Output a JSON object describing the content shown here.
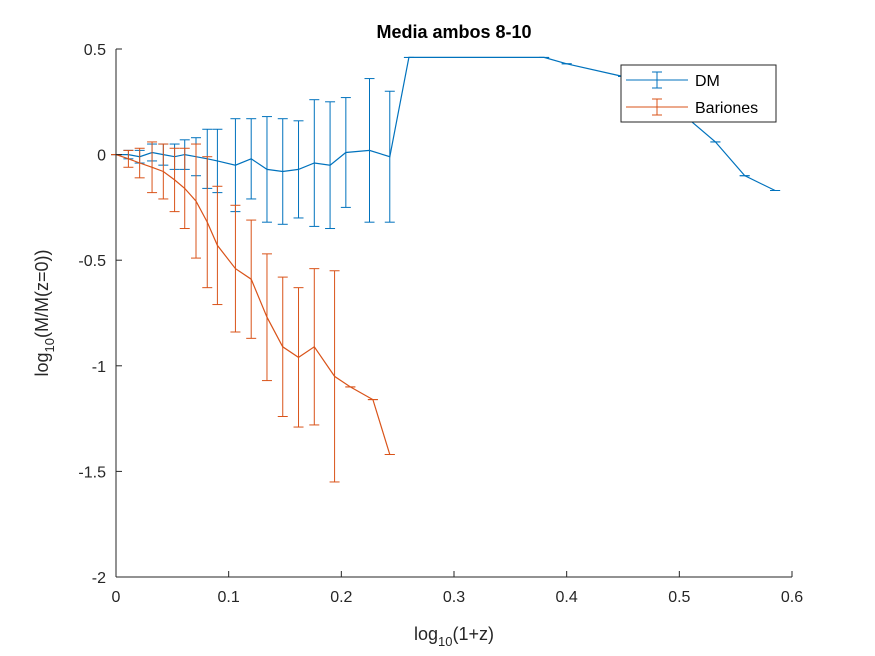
{
  "chart_data": {
    "type": "line",
    "title": "Media ambos 8-10",
    "xlabel": {
      "base": "log",
      "sub": "10",
      "rest": "(1+z)"
    },
    "ylabel": {
      "base": "log",
      "sub": "10",
      "rest": "(M/M(z=0))"
    },
    "xlim": [
      0,
      0.6
    ],
    "ylim": [
      -2,
      0.5
    ],
    "xticks": [
      0,
      0.1,
      0.2,
      0.3,
      0.4,
      0.5,
      0.6
    ],
    "xtick_labels": [
      "0",
      "0.1",
      "0.2",
      "0.3",
      "0.4",
      "0.5",
      "0.6"
    ],
    "yticks": [
      -2,
      -1.5,
      -1,
      -0.5,
      0,
      0.5
    ],
    "ytick_labels": [
      "-2",
      "-1.5",
      "-1",
      "-0.5",
      "0",
      "0.5"
    ],
    "grid": false,
    "legend_position": "top-right",
    "series": [
      {
        "name": "DM",
        "color": "#0072BD",
        "points": [
          {
            "x": 0.0,
            "y": 0.0,
            "err": 0.0
          },
          {
            "x": 0.011,
            "y": 0.0,
            "err": 0.02
          },
          {
            "x": 0.021,
            "y": -0.01,
            "err": 0.03
          },
          {
            "x": 0.032,
            "y": 0.01,
            "err": 0.04
          },
          {
            "x": 0.042,
            "y": 0.0,
            "err": 0.05
          },
          {
            "x": 0.052,
            "y": -0.01,
            "err": 0.06
          },
          {
            "x": 0.061,
            "y": 0.0,
            "err": 0.07
          },
          {
            "x": 0.071,
            "y": -0.01,
            "err": 0.09
          },
          {
            "x": 0.081,
            "y": -0.02,
            "err": 0.14
          },
          {
            "x": 0.09,
            "y": -0.03,
            "err": 0.15
          },
          {
            "x": 0.106,
            "y": -0.05,
            "err": 0.22
          },
          {
            "x": 0.12,
            "y": -0.02,
            "err": 0.19
          },
          {
            "x": 0.134,
            "y": -0.07,
            "err": 0.25
          },
          {
            "x": 0.148,
            "y": -0.08,
            "err": 0.25
          },
          {
            "x": 0.162,
            "y": -0.07,
            "err": 0.23
          },
          {
            "x": 0.176,
            "y": -0.04,
            "err": 0.3
          },
          {
            "x": 0.19,
            "y": -0.05,
            "err": 0.3
          },
          {
            "x": 0.204,
            "y": 0.01,
            "err": 0.26
          },
          {
            "x": 0.225,
            "y": 0.02,
            "err": 0.34
          },
          {
            "x": 0.243,
            "y": -0.01,
            "err": 0.31
          },
          {
            "x": 0.26,
            "y": 0.46,
            "err": 0.0
          },
          {
            "x": 0.38,
            "y": 0.46,
            "err": 0.0
          },
          {
            "x": 0.4,
            "y": 0.43,
            "err": 0.0
          },
          {
            "x": 0.45,
            "y": 0.37,
            "err": 0.0
          },
          {
            "x": 0.49,
            "y": 0.26,
            "err": 0.0
          },
          {
            "x": 0.51,
            "y": 0.16,
            "err": 0.0
          },
          {
            "x": 0.532,
            "y": 0.06,
            "err": 0.0
          },
          {
            "x": 0.558,
            "y": -0.1,
            "err": 0.0
          },
          {
            "x": 0.585,
            "y": -0.17,
            "err": 0.0
          }
        ]
      },
      {
        "name": "Bariones",
        "color": "#D95319",
        "points": [
          {
            "x": 0.0,
            "y": 0.0,
            "err": 0.0
          },
          {
            "x": 0.011,
            "y": -0.02,
            "err": 0.04
          },
          {
            "x": 0.021,
            "y": -0.04,
            "err": 0.07
          },
          {
            "x": 0.032,
            "y": -0.06,
            "err": 0.12
          },
          {
            "x": 0.042,
            "y": -0.08,
            "err": 0.13
          },
          {
            "x": 0.052,
            "y": -0.12,
            "err": 0.15
          },
          {
            "x": 0.061,
            "y": -0.16,
            "err": 0.19
          },
          {
            "x": 0.071,
            "y": -0.22,
            "err": 0.27
          },
          {
            "x": 0.081,
            "y": -0.32,
            "err": 0.31
          },
          {
            "x": 0.09,
            "y": -0.43,
            "err": 0.28
          },
          {
            "x": 0.106,
            "y": -0.54,
            "err": 0.3
          },
          {
            "x": 0.12,
            "y": -0.59,
            "err": 0.28
          },
          {
            "x": 0.134,
            "y": -0.77,
            "err": 0.3
          },
          {
            "x": 0.148,
            "y": -0.91,
            "err": 0.33
          },
          {
            "x": 0.162,
            "y": -0.96,
            "err": 0.33
          },
          {
            "x": 0.176,
            "y": -0.91,
            "err": 0.37
          },
          {
            "x": 0.194,
            "y": -1.05,
            "err": 0.5
          },
          {
            "x": 0.208,
            "y": -1.1,
            "err": 0.0
          },
          {
            "x": 0.228,
            "y": -1.16,
            "err": 0.0
          },
          {
            "x": 0.243,
            "y": -1.42,
            "err": 0.0
          }
        ]
      }
    ]
  }
}
